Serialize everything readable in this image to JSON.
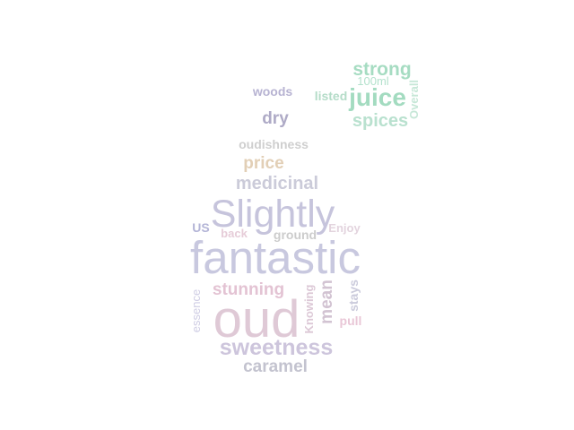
{
  "word_cloud": {
    "words": [
      {
        "text": "strong",
        "color": "#a6dcc2"
      },
      {
        "text": "100ml",
        "color": "#b4e2cd"
      },
      {
        "text": "woods",
        "color": "#b7b3d2"
      },
      {
        "text": "listed",
        "color": "#b4dcc8"
      },
      {
        "text": "juice",
        "color": "#a3dbc0"
      },
      {
        "text": "Overall",
        "color": "#c6e7d7"
      },
      {
        "text": "dry",
        "color": "#aeaac6"
      },
      {
        "text": "spices",
        "color": "#b9e1cf"
      },
      {
        "text": "oudishness",
        "color": "#cfcfcf"
      },
      {
        "text": "price",
        "color": "#e2cfb6"
      },
      {
        "text": "medicinal",
        "color": "#cbcbd9"
      },
      {
        "text": "Slightly",
        "color": "#c6c4dc"
      },
      {
        "text": "US",
        "color": "#b4b5d7"
      },
      {
        "text": "back",
        "color": "#e6ccd8"
      },
      {
        "text": "ground",
        "color": "#cccccc"
      },
      {
        "text": "Enjoy",
        "color": "#e3d4de"
      },
      {
        "text": "fantastic",
        "color": "#c8c8df"
      },
      {
        "text": "stunning",
        "color": "#e3c3d3"
      },
      {
        "text": "essence",
        "color": "#cfcde4"
      },
      {
        "text": "Knowing",
        "color": "#dcc8d6"
      },
      {
        "text": "mean",
        "color": "#d2c3d2"
      },
      {
        "text": "stays",
        "color": "#cbcbdc"
      },
      {
        "text": "oud",
        "color": "#dfc9d6"
      },
      {
        "text": "pull",
        "color": "#e9c7d7"
      },
      {
        "text": "sweetness",
        "color": "#cdc5dc"
      },
      {
        "text": "caramel",
        "color": "#c3c3cf"
      }
    ]
  }
}
